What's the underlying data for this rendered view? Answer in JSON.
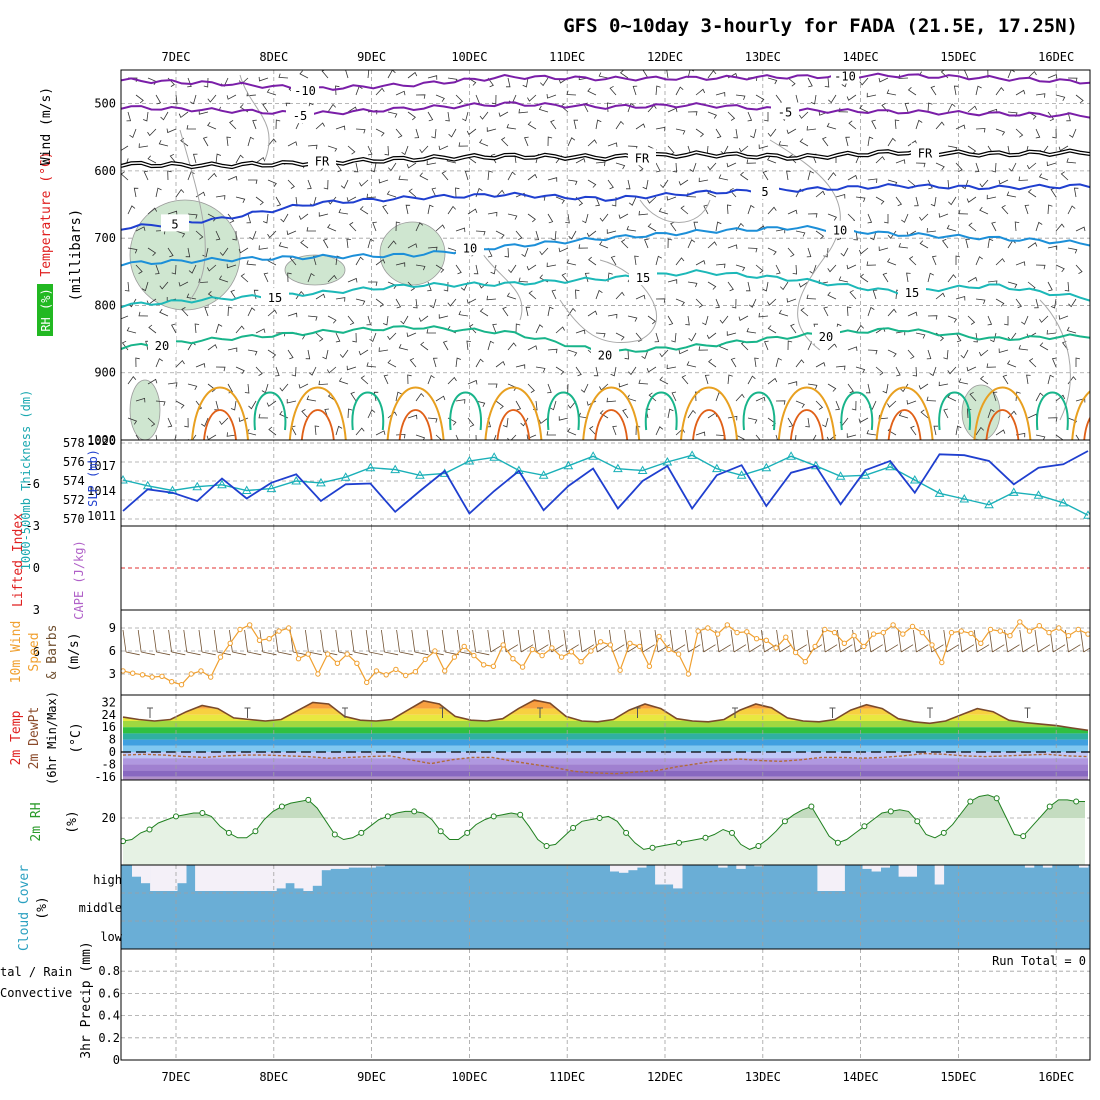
{
  "title": "GFS 0~10day 3-hourly for FADA (21.5E, 17.25N)",
  "colors": {
    "purple": "#7a1ea8",
    "blue": "#1f3fcf",
    "ltblue": "#1c8fd8",
    "cyan": "#1cb8b8",
    "teal": "#18b48a",
    "orange": "#e8a020",
    "darkorange": "#e06018",
    "rhfill": "#cfe6d0",
    "grid": "#a0a0a0",
    "cloud": "#6aaed6",
    "cloudhi": "#f4f0f8",
    "tempdew": "#b06a3a",
    "green": "#2a9a2a",
    "red": "#e02020"
  },
  "chart_data": [
    {
      "type": "line",
      "panel": "upper-air",
      "ylabel_parts": [
        "RH (%)",
        "Temperature (°C)",
        "Wind (m/s)",
        "(millibars)"
      ],
      "y_ticks": [
        "500",
        "600",
        "700",
        "800",
        "900",
        "1000"
      ],
      "ylim": [
        1000,
        450
      ],
      "x_labels": [
        "7DEC",
        "8DEC",
        "9DEC",
        "10DEC",
        "11DEC",
        "12DEC",
        "13DEC",
        "14DEC",
        "15DEC",
        "16DEC"
      ],
      "isotherms": [
        {
          "name": "-10",
          "pressure_levels": [
            465,
            470,
            478,
            472,
            460,
            463,
            462,
            460,
            458,
            462,
            468
          ]
        },
        {
          "name": "-5",
          "pressure_levels": [
            505,
            510,
            515,
            507,
            500,
            505,
            502,
            510,
            512,
            515,
            518
          ]
        },
        {
          "name": "FR",
          "pressure_levels": [
            590,
            592,
            588,
            582,
            578,
            580,
            575,
            580,
            572,
            575,
            572
          ]
        },
        {
          "name": "5",
          "pressure_levels": [
            685,
            672,
            648,
            640,
            635,
            642,
            632,
            628,
            622,
            625,
            622
          ]
        },
        {
          "name": "10",
          "pressure_levels": [
            738,
            732,
            728,
            725,
            712,
            700,
            690,
            684,
            694,
            700,
            708
          ]
        },
        {
          "name": "15",
          "pressure_levels": [
            800,
            790,
            782,
            770,
            768,
            760,
            750,
            762,
            780,
            770,
            790
          ]
        },
        {
          "name": "20",
          "pressure_levels": [
            862,
            850,
            840,
            832,
            840,
            870,
            860,
            845,
            835,
            850,
            845
          ]
        }
      ],
      "labels": [
        "-10",
        "-5",
        "FR",
        "5",
        "10",
        "15",
        "20"
      ]
    },
    {
      "type": "line",
      "panel": "thickness-slp",
      "ylabel_left": "1000-500mb Thickness (dm)",
      "ylabel_right": "SLP (mb)",
      "y_ticks_left": [
        "570",
        "572",
        "574",
        "576",
        "578"
      ],
      "y_ticks_right": [
        "1011",
        "1014",
        "1017",
        "1020"
      ],
      "series": [
        {
          "name": "Thickness",
          "unit": "dm",
          "values": [
            574.1,
            573.5,
            573.0,
            573.4,
            573.6,
            573.0,
            573.2,
            574.0,
            573.8,
            574.4,
            575.4,
            575.2,
            574.6,
            574.8,
            576.1,
            576.5,
            575.1,
            574.6,
            575.6,
            576.6,
            575.3,
            575.1,
            576.0,
            576.7,
            575.3,
            574.6,
            575.4,
            576.6,
            575.6,
            574.5,
            574.6,
            575.5,
            574.1,
            572.7,
            572.1,
            571.5,
            572.8,
            572.5,
            571.7,
            570.4
          ]
        },
        {
          "name": "SLP",
          "unit": "mb",
          "values": [
            1011.6,
            1014.2,
            1013.8,
            1012.8,
            1015.5,
            1013.1,
            1015.0,
            1016.0,
            1012.8,
            1014.8,
            1014.9,
            1011.5,
            1014.0,
            1016.4,
            1011.3,
            1014.0,
            1016.4,
            1011.7,
            1014.6,
            1016.7,
            1011.9,
            1015.2,
            1017.0,
            1011.9,
            1015.9,
            1017.1,
            1012.2,
            1016.2,
            1017.0,
            1012.4,
            1016.5,
            1017.6,
            1013.8,
            1018.4,
            1018.3,
            1017.6,
            1014.8,
            1016.8,
            1017.2,
            1018.8
          ]
        }
      ]
    },
    {
      "type": "line",
      "panel": "stability",
      "ylabel_left": "Lifted Index",
      "ylabel_right": "CAPE (J/kg)",
      "y_ticks": [
        "6",
        "3",
        "0",
        "-3",
        "-6"
      ],
      "reference_line": 0
    },
    {
      "type": "line",
      "panel": "10m-wind",
      "ylabel": "10m Wind Speed & Barbs (m/s)",
      "y_ticks": [
        "3",
        "6",
        "9"
      ],
      "ylim": [
        1,
        10.5
      ],
      "series": [
        {
          "name": "Wind speed",
          "values": [
            3.4,
            3.1,
            2.9,
            2.6,
            2.7,
            2.0,
            1.6,
            3.0,
            3.4,
            2.6,
            5.2,
            7.0,
            8.8,
            9.4,
            7.4,
            7.6,
            8.6,
            9.0,
            5.0,
            5.6,
            3.0,
            5.6,
            4.4,
            5.6,
            4.4,
            1.9,
            3.4,
            2.9,
            3.6,
            2.8,
            3.3,
            4.9,
            6.0,
            3.4,
            5.2,
            6.6,
            5.4,
            4.2,
            4.0,
            6.8,
            5.0,
            3.9,
            6.2,
            5.4,
            6.4,
            5.2,
            5.9,
            4.6,
            6.0,
            7.2,
            6.8,
            3.5,
            7.0,
            6.6,
            4.0,
            7.9,
            6.2,
            5.6,
            3.0,
            8.6,
            9.0,
            8.2,
            9.4,
            8.4,
            8.5,
            7.6,
            7.4,
            6.4,
            7.8,
            5.8,
            4.6,
            6.6,
            8.8,
            8.4,
            7.0,
            8.0,
            6.6,
            8.2,
            8.4,
            9.4,
            8.2,
            9.2,
            8.4,
            6.8,
            4.5,
            8.4,
            8.6,
            8.3,
            7.0,
            8.8,
            8.6,
            8.0,
            9.8,
            8.6,
            9.3,
            8.4,
            9.0,
            8.0,
            8.8,
            8.2
          ]
        }
      ]
    },
    {
      "type": "area",
      "panel": "2m-temp",
      "ylabel": "2m Temp 2m DewPt (6hr Min/Max) (°C)",
      "y_ticks": [
        "-16",
        "-8",
        "0",
        "8",
        "16",
        "24",
        "32"
      ],
      "ylim": [
        -20,
        36
      ],
      "series": [
        {
          "name": "2m Temp",
          "values": [
            22.5,
            21.0,
            20.0,
            21.0,
            26.0,
            30.0,
            28.0,
            22.0,
            21.0,
            20.0,
            21.0,
            26.5,
            32.0,
            31.0,
            23.0,
            20.5,
            20.0,
            21.0,
            27.0,
            33.0,
            31.0,
            23.0,
            20.5,
            20.0,
            21.5,
            28.0,
            33.5,
            31.5,
            23.0,
            20.0,
            19.5,
            21.0,
            27.0,
            31.0,
            28.0,
            21.5,
            20.0,
            19.5,
            21.0,
            27.0,
            31.0,
            28.5,
            22.0,
            20.0,
            19.5,
            21.0,
            27.0,
            30.5,
            28.0,
            21.5,
            19.5,
            18.5,
            20.0,
            24.0,
            28.0,
            26.0,
            20.5,
            19.0,
            18.0,
            17.0,
            15.5,
            14.0
          ]
        },
        {
          "name": "2m DewPt",
          "values": [
            -2.0,
            -1.5,
            -2.0,
            -3.0,
            -3.5,
            -2.5,
            -2.0,
            -2.0,
            -2.5,
            -3.0,
            -4.0,
            -3.5,
            -3.0,
            -2.5,
            -5.0,
            -7.5,
            -5.0,
            -3.5,
            -3.5,
            -6.0,
            -8.0,
            -10.0,
            -12.5,
            -13.5,
            -14.0,
            -13.0,
            -12.0,
            -9.5,
            -7.5,
            -5.5,
            -4.5,
            -5.5,
            -6.0,
            -5.0,
            -3.5,
            -3.5,
            -4.0,
            -3.5,
            -2.5,
            -1.0,
            -1.5,
            -2.5,
            -3.0,
            -2.5,
            -2.0,
            -1.5,
            -2.5,
            -3.0
          ]
        }
      ]
    },
    {
      "type": "area",
      "panel": "2m-rh",
      "ylabel": "2m RH (%)",
      "y_ticks": [
        "20"
      ],
      "ylim": [
        8,
        30
      ],
      "series": [
        {
          "name": "2m RH",
          "values": [
            13.0,
            13.5,
            15.5,
            16.5,
            18.5,
            19.5,
            20.5,
            21.0,
            21.5,
            21.5,
            20.5,
            17.5,
            15.5,
            14.0,
            14.0,
            16.0,
            19.5,
            22.0,
            23.5,
            24.5,
            25.0,
            25.5,
            23.0,
            19.0,
            15.0,
            13.5,
            14.0,
            15.5,
            17.5,
            19.5,
            20.5,
            21.5,
            22.0,
            22.0,
            21.5,
            19.5,
            16.0,
            13.5,
            13.5,
            15.5,
            18.0,
            19.5,
            20.5,
            21.0,
            21.5,
            21.0,
            17.5,
            13.5,
            11.5,
            12.0,
            14.5,
            17.0,
            19.0,
            19.5,
            20.0,
            20.5,
            19.0,
            15.5,
            12.5,
            10.5,
            11.0,
            11.5,
            12.0,
            12.5,
            13.0,
            13.5,
            14.0,
            15.0,
            16.5,
            15.5,
            12.0,
            10.5,
            11.5,
            13.5,
            16.0,
            19.0,
            21.0,
            22.5,
            23.5,
            19.0,
            14.5,
            12.5,
            13.5,
            15.5,
            17.5,
            19.5,
            21.5,
            22.0,
            22.5,
            22.0,
            19.0,
            15.0,
            14.0,
            15.5,
            18.0,
            21.5,
            25.0,
            26.5,
            27.0,
            26.0,
            20.5,
            15.0,
            14.5,
            17.5,
            20.5,
            23.5,
            25.5,
            25.5,
            25.0,
            25.0
          ]
        }
      ]
    },
    {
      "type": "bar",
      "panel": "cloud-cover",
      "ylabel": "Cloud Cover (%)",
      "levels": [
        "high",
        "middle",
        "low"
      ],
      "series": [
        {
          "name": "high",
          "values": [
            0.0,
            0.45,
            0.7,
            1.0,
            1.0,
            1.0,
            0.7,
            0.0,
            1.0,
            1.0,
            1.0,
            1.0,
            1.0,
            1.0,
            1.0,
            1.0,
            1.0,
            0.9,
            0.7,
            0.9,
            1.0,
            0.8,
            0.2,
            0.15,
            0.15,
            0.1,
            0.1,
            0.1,
            0.05,
            0.0,
            0.0,
            0.0,
            0.0,
            0.0,
            0.0,
            0.0,
            0.0,
            0.0,
            0.0,
            0.0,
            0.0,
            0.0,
            0.0,
            0.0,
            0.0,
            0.0,
            0.0,
            0.0,
            0.0,
            0.0,
            0.0,
            0.0,
            0.0,
            0.0,
            0.25,
            0.3,
            0.2,
            0.1,
            0.0,
            0.75,
            0.75,
            0.9,
            0.0,
            0.0,
            0.0,
            0.0,
            0.1,
            0.0,
            0.15,
            0.0,
            0.05,
            0.0,
            0.0,
            0.0,
            0.0,
            0.0,
            0.0,
            1.0,
            1.0,
            1.0,
            0.0,
            0.0,
            0.15,
            0.25,
            0.1,
            0.0,
            0.45,
            0.45,
            0.0,
            0.0,
            0.75,
            0.0,
            0.0,
            0.0,
            0.0,
            0.0,
            0.0,
            0.0,
            0.0,
            0.0,
            0.1,
            0.0,
            0.1,
            0.0,
            0.0,
            0.0,
            0.1
          ]
        }
      ]
    },
    {
      "type": "bar",
      "panel": "precip",
      "ylabel": "3hr Precip (mm)",
      "ylabel_left_parts": [
        "tal / Rain",
        "Convective"
      ],
      "y_ticks": [
        "0",
        "0.2",
        "0.4",
        "0.6",
        "0.8"
      ],
      "ylim": [
        0,
        1
      ],
      "run_total": "Run Total = 0",
      "values": []
    }
  ]
}
